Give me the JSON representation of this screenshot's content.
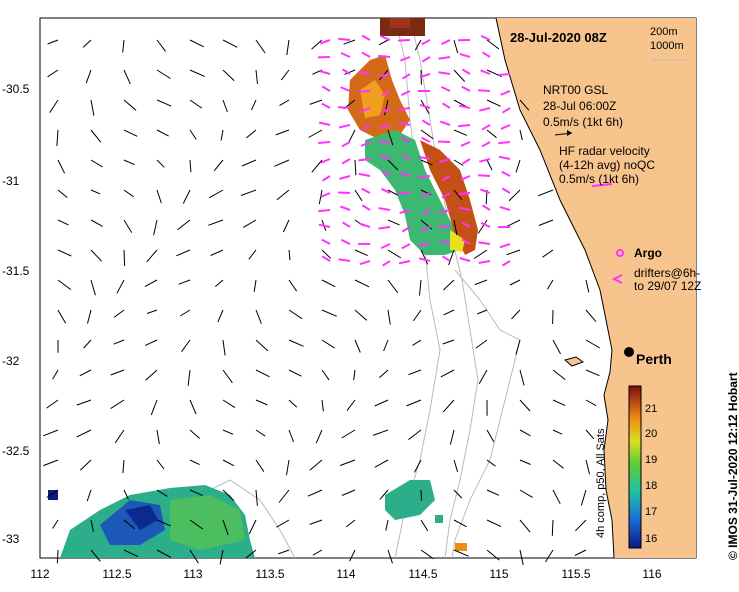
{
  "title": "28-Jul-2020 08Z",
  "depth_legend": {
    "line1": "200m",
    "line2": "1000m"
  },
  "gsl_legend": {
    "name": "NRT00 GSL",
    "time": "28-Jul 06:00Z",
    "scale": "0.5m/s (1kt 6h)"
  },
  "hf_legend": {
    "line1": "HF radar velocity",
    "line2": "(4-12h avg) noQC",
    "scale": "0.5m/s (1kt 6h)"
  },
  "argo_label": "Argo",
  "drifters_label": {
    "line1": "drifters@6h-",
    "line2": "to 29/07 12Z"
  },
  "city": "Perth",
  "colorbar": {
    "label": "4h comp, p50, All Sats",
    "ticks": [
      "21",
      "20",
      "19",
      "18",
      "17",
      "16"
    ]
  },
  "credit": "© IMOS 31-Jul-2020 12:12 Hobart",
  "axes": {
    "x_ticks": [
      "112",
      "112.5",
      "113",
      "113.5",
      "114",
      "114.5",
      "115",
      "115.5",
      "116"
    ],
    "y_ticks": [
      "-30.5",
      "-31",
      "-31.5",
      "-32",
      "-32.5",
      "-33"
    ]
  },
  "colors": {
    "land": "#F7C48E",
    "hf_arrow": "#FF33FF",
    "coast": "#000000",
    "isobath": "#BBBBBB"
  }
}
